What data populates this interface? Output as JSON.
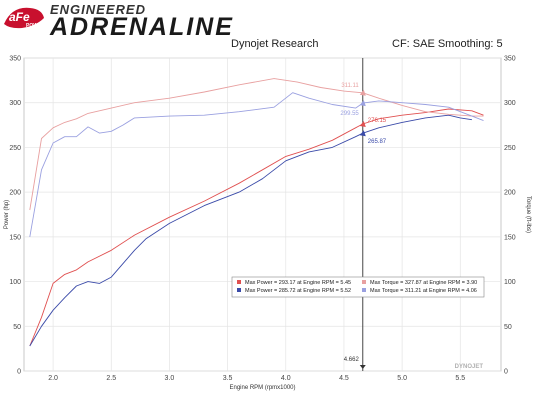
{
  "header": {
    "brand": "aFe",
    "brand_sub": "POWER",
    "title_line1": "ENGINEERED",
    "title_line2": "ADRENALINE",
    "subtitle": "Dynojet Research",
    "cf": "CF: SAE Smoothing: 5"
  },
  "colors": {
    "run1_power": "#e05050",
    "run1_torque": "#e8a0a0",
    "run2_power": "#3a4aa8",
    "run2_torque": "#9aa0e0",
    "grid": "#e4e4e4",
    "cursor": "#333333"
  },
  "chart_data": {
    "type": "line",
    "xlabel": "Engine RPM (rpmx1000)",
    "ylabel_left": "Power (hp)",
    "ylabel_right": "Torque (ft-lbs)",
    "xlim": [
      1.75,
      5.85
    ],
    "ylim": [
      0,
      350
    ],
    "x_ticks": [
      "2.0",
      "2.5",
      "3.0",
      "3.5",
      "4.0",
      "4.5",
      "5.0",
      "5.5"
    ],
    "y_ticks": [
      "0",
      "50",
      "100",
      "150",
      "200",
      "250",
      "300",
      "350"
    ],
    "watermark": "DYNOJET",
    "cursor": {
      "x": 4.662,
      "label": "4.662"
    },
    "series": [
      {
        "key": "run1_power",
        "x": [
          1.8,
          1.9,
          2.0,
          2.1,
          2.2,
          2.3,
          2.5,
          2.7,
          3.0,
          3.3,
          3.6,
          3.8,
          4.0,
          4.2,
          4.4,
          4.6,
          4.662,
          4.8,
          5.0,
          5.2,
          5.4,
          5.6,
          5.7
        ],
        "values": [
          28,
          60,
          98,
          108,
          113,
          122,
          135,
          152,
          172,
          190,
          210,
          225,
          240,
          248,
          258,
          272,
          276.15,
          282,
          286,
          289,
          293,
          291,
          286
        ]
      },
      {
        "key": "run2_power",
        "x": [
          1.8,
          1.9,
          2.0,
          2.1,
          2.2,
          2.3,
          2.4,
          2.5,
          2.6,
          2.7,
          2.8,
          3.0,
          3.3,
          3.6,
          3.8,
          4.0,
          4.2,
          4.4,
          4.6,
          4.662,
          4.8,
          5.0,
          5.2,
          5.4,
          5.5,
          5.6
        ],
        "values": [
          28,
          50,
          68,
          82,
          95,
          100,
          98,
          105,
          120,
          135,
          148,
          165,
          185,
          200,
          215,
          235,
          245,
          250,
          262,
          265.87,
          272,
          278,
          283,
          286,
          283,
          281
        ]
      },
      {
        "key": "run1_torque",
        "x": [
          1.8,
          1.9,
          2.0,
          2.1,
          2.2,
          2.3,
          2.5,
          2.7,
          3.0,
          3.3,
          3.6,
          3.9,
          4.1,
          4.3,
          4.5,
          4.662,
          4.8,
          5.0,
          5.2,
          5.4,
          5.6,
          5.7
        ],
        "values": [
          180,
          260,
          272,
          278,
          282,
          288,
          294,
          300,
          305,
          312,
          320,
          327,
          323,
          317,
          313,
          311.11,
          305,
          297,
          290,
          287,
          285,
          285
        ]
      },
      {
        "key": "run2_torque",
        "x": [
          1.8,
          1.9,
          2.0,
          2.1,
          2.2,
          2.3,
          2.4,
          2.5,
          2.6,
          2.7,
          3.0,
          3.3,
          3.6,
          3.9,
          4.06,
          4.2,
          4.4,
          4.6,
          4.662,
          4.8,
          5.0,
          5.2,
          5.4,
          5.6,
          5.7
        ],
        "values": [
          150,
          225,
          255,
          262,
          262,
          273,
          266,
          268,
          275,
          283,
          285,
          286,
          290,
          295,
          311.21,
          305,
          298,
          294,
          299.55,
          302,
          300,
          298,
          295,
          285,
          280
        ]
      }
    ],
    "annotations": [
      {
        "text": "311.11",
        "series": "run1_torque",
        "x": 4.662,
        "y": 311.11
      },
      {
        "text": "299.55",
        "series": "run2_torque",
        "x": 4.662,
        "y": 299.55
      },
      {
        "text": "276.15",
        "series": "run1_power",
        "x": 4.662,
        "y": 276.15
      },
      {
        "text": "265.87",
        "series": "run2_power",
        "x": 4.662,
        "y": 265.87
      }
    ],
    "legend": {
      "position": "bottom-right",
      "rows": [
        {
          "left": "Max Power = 293.17 at Engine RPM = 5.45",
          "right": "Max Torque = 327.87 at Engine RPM = 3.90",
          "left_color": "#e05050",
          "right_color": "#e8a0a0"
        },
        {
          "left": "Max Power = 285.72 at Engine RPM = 5.52",
          "right": "Max Torque = 311.21 at Engine RPM = 4.06",
          "left_color": "#3a4aa8",
          "right_color": "#9aa0e0"
        }
      ]
    }
  }
}
